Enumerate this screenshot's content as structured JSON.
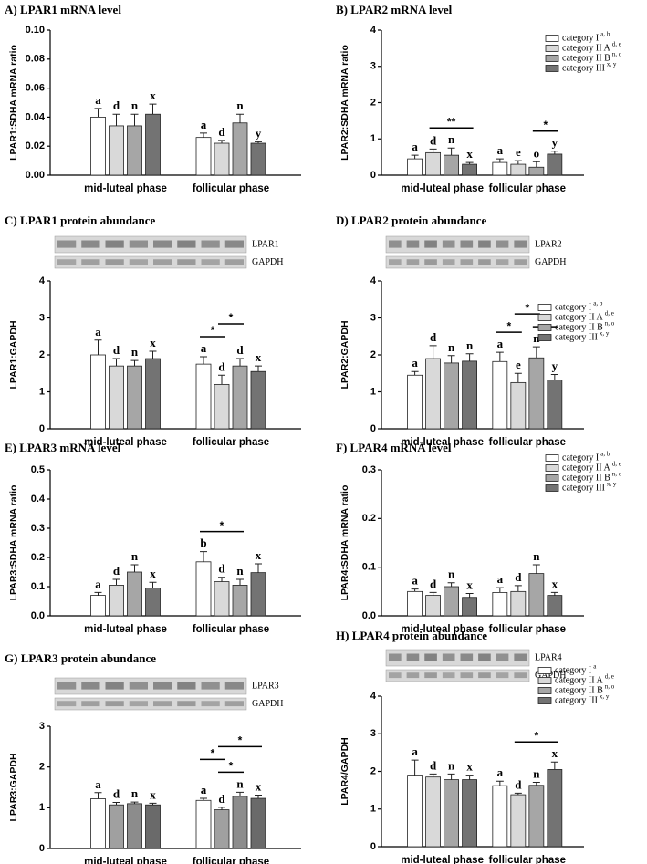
{
  "chart_data": [
    {
      "type": "bar",
      "title": "A) LPAR1 mRNA level",
      "y_label": "LPAR1:SDHA mRNA ratio",
      "categories": [
        "mid-luteal phase",
        "follicular phase"
      ],
      "ylim": [
        0,
        0.1
      ],
      "yticks": [
        {
          "value": 0,
          "label": "0.00"
        },
        {
          "value": 0.02,
          "label": "0.02"
        },
        {
          "value": 0.04,
          "label": "0.04"
        },
        {
          "value": 0.06,
          "label": "0.06"
        },
        {
          "value": 0.08,
          "label": "0.08"
        },
        {
          "value": 0.1,
          "label": "0.10"
        }
      ],
      "series": [
        {
          "name": "category I",
          "color": "#ffffff",
          "values": [
            0.04,
            0.026
          ],
          "errors": [
            0.006,
            0.003
          ],
          "letters": [
            "a",
            "a"
          ]
        },
        {
          "name": "category II A",
          "color": "#d9d9d9",
          "values": [
            0.034,
            0.022
          ],
          "errors": [
            0.008,
            0.002
          ],
          "letters": [
            "d",
            "d"
          ]
        },
        {
          "name": "category II B",
          "color": "#a6a6a6",
          "values": [
            0.034,
            0.036
          ],
          "errors": [
            0.008,
            0.006
          ],
          "letters": [
            "n",
            "n"
          ]
        },
        {
          "name": "category III",
          "color": "#737373",
          "values": [
            0.042,
            0.022
          ],
          "errors": [
            0.007,
            0.001
          ],
          "letters": [
            "x",
            "y"
          ]
        }
      ]
    },
    {
      "type": "bar",
      "title": "B) LPAR2 mRNA level",
      "y_label": "LPAR2:SDHA mRNA ratio",
      "categories": [
        "mid-luteal phase",
        "follicular phase"
      ],
      "ylim": [
        0,
        4
      ],
      "yticks": [
        0,
        1,
        2,
        3,
        4
      ],
      "legend": true,
      "series": [
        {
          "name": "category I",
          "sup": "a, b",
          "color": "#ffffff",
          "values": [
            0.45,
            0.35
          ],
          "errors": [
            0.1,
            0.1
          ],
          "letters": [
            "a",
            "a"
          ]
        },
        {
          "name": "category II A",
          "sup": "d, e",
          "color": "#d9d9d9",
          "values": [
            0.62,
            0.3
          ],
          "errors": [
            0.1,
            0.1
          ],
          "letters": [
            "d",
            "e"
          ]
        },
        {
          "name": "category II B",
          "sup": "n, o",
          "color": "#a6a6a6",
          "values": [
            0.55,
            0.22
          ],
          "errors": [
            0.2,
            0.15
          ],
          "letters": [
            "n",
            "o"
          ]
        },
        {
          "name": "category III",
          "sup": "x, y",
          "color": "#737373",
          "values": [
            0.3,
            0.58
          ],
          "errors": [
            0.05,
            0.08
          ],
          "letters": [
            "x",
            "y"
          ]
        }
      ],
      "brackets": [
        {
          "category": 0,
          "from": 1,
          "to": 3,
          "label": "**"
        },
        {
          "category": 1,
          "from": 2,
          "to": 3,
          "label": "*"
        }
      ]
    },
    {
      "type": "bar",
      "title": "C) LPAR1 protein abundance",
      "y_label": "LPAR1:GAPDH",
      "categories": [
        "mid-luteal phase",
        "follicular phase"
      ],
      "blots": [
        "LPAR1",
        "GAPDH"
      ],
      "ylim": [
        0,
        4
      ],
      "yticks": [
        0,
        1,
        2,
        3,
        4
      ],
      "series": [
        {
          "name": "category I",
          "color": "#ffffff",
          "values": [
            2.0,
            1.75
          ],
          "errors": [
            0.4,
            0.2
          ],
          "letters": [
            "a",
            "a"
          ]
        },
        {
          "name": "category II A",
          "color": "#d9d9d9",
          "values": [
            1.7,
            1.2
          ],
          "errors": [
            0.2,
            0.25
          ],
          "letters": [
            "d",
            "d"
          ]
        },
        {
          "name": "category II B",
          "color": "#a6a6a6",
          "values": [
            1.7,
            1.7
          ],
          "errors": [
            0.15,
            0.2
          ],
          "letters": [
            "n",
            "d"
          ]
        },
        {
          "name": "category III",
          "color": "#737373",
          "values": [
            1.9,
            1.55
          ],
          "errors": [
            0.2,
            0.15
          ],
          "letters": [
            "x",
            "x"
          ]
        }
      ],
      "brackets": [
        {
          "category": 1,
          "from": 0,
          "to": 1,
          "label": "*"
        },
        {
          "category": 1,
          "from": 1,
          "to": 2,
          "label": "*"
        }
      ]
    },
    {
      "type": "bar",
      "title": "D) LPAR2 protein abundance",
      "y_label": "LPAR2:GAPDH",
      "categories": [
        "mid-luteal phase",
        "follicular phase"
      ],
      "blots": [
        "LPAR2",
        "GAPDH"
      ],
      "ylim": [
        0,
        4
      ],
      "yticks": [
        0,
        1,
        2,
        3,
        4
      ],
      "legend": true,
      "series": [
        {
          "name": "category I",
          "sup": "a, b",
          "color": "#ffffff",
          "values": [
            1.45,
            1.82
          ],
          "errors": [
            0.1,
            0.25
          ],
          "letters": [
            "a",
            "a"
          ]
        },
        {
          "name": "category II A",
          "sup": "d, e",
          "color": "#d9d9d9",
          "values": [
            1.9,
            1.25
          ],
          "errors": [
            0.35,
            0.25
          ],
          "letters": [
            "d",
            "e"
          ]
        },
        {
          "name": "category II B",
          "sup": "n, o",
          "color": "#a6a6a6",
          "values": [
            1.78,
            1.92
          ],
          "errors": [
            0.2,
            0.3
          ],
          "letters": [
            "n",
            "n"
          ]
        },
        {
          "name": "category III",
          "sup": "x, y",
          "color": "#737373",
          "values": [
            1.83,
            1.32
          ],
          "errors": [
            0.2,
            0.15
          ],
          "letters": [
            "n",
            "y"
          ]
        }
      ],
      "brackets": [
        {
          "category": 1,
          "from": 0,
          "to": 1,
          "label": "*"
        },
        {
          "category": 1,
          "from": 2,
          "to": 3,
          "label": "*"
        },
        {
          "category": 1,
          "from": 1,
          "to": 2,
          "label": "*"
        }
      ]
    },
    {
      "type": "bar",
      "title": "E) LPAR3 mRNA level",
      "y_label": "LPAR3:SDHA mRNA ratio",
      "categories": [
        "mid-luteal phase",
        "follicular phase"
      ],
      "ylim": [
        0,
        0.5
      ],
      "yticks": [
        {
          "value": 0,
          "label": "0.0"
        },
        0.1,
        0.2,
        0.3,
        0.4,
        0.5
      ],
      "series": [
        {
          "name": "category I",
          "color": "#ffffff",
          "values": [
            0.07,
            0.185
          ],
          "errors": [
            0.01,
            0.035
          ],
          "letters": [
            "a",
            "b"
          ]
        },
        {
          "name": "category II A",
          "color": "#d9d9d9",
          "values": [
            0.105,
            0.117
          ],
          "errors": [
            0.02,
            0.015
          ],
          "letters": [
            "d",
            "d"
          ]
        },
        {
          "name": "category II B",
          "color": "#a6a6a6",
          "values": [
            0.15,
            0.105
          ],
          "errors": [
            0.025,
            0.02
          ],
          "letters": [
            "n",
            "n"
          ]
        },
        {
          "name": "category III",
          "color": "#737373",
          "values": [
            0.095,
            0.148
          ],
          "errors": [
            0.02,
            0.03
          ],
          "letters": [
            "x",
            "x"
          ]
        }
      ],
      "brackets": [
        {
          "category": 1,
          "from": 0,
          "to": 2,
          "label": "*"
        }
      ]
    },
    {
      "type": "bar",
      "title": "F) LPAR4 mRNA level",
      "y_label": "LPAR4:SDHA mRNA ratio",
      "categories": [
        "mid-luteal phase",
        "follicular phase"
      ],
      "ylim": [
        0,
        0.3
      ],
      "yticks": [
        {
          "value": 0,
          "label": "0.0"
        },
        0.1,
        0.2,
        0.3
      ],
      "legend": true,
      "series": [
        {
          "name": "category I",
          "sup": "a, b",
          "color": "#ffffff",
          "values": [
            0.05,
            0.048
          ],
          "errors": [
            0.005,
            0.01
          ],
          "letters": [
            "a",
            "a"
          ]
        },
        {
          "name": "category II A",
          "sup": "d, e",
          "color": "#d9d9d9",
          "values": [
            0.042,
            0.05
          ],
          "errors": [
            0.006,
            0.012
          ],
          "letters": [
            "d",
            "d"
          ]
        },
        {
          "name": "category II B",
          "sup": "n, o",
          "color": "#a6a6a6",
          "values": [
            0.06,
            0.087
          ],
          "errors": [
            0.008,
            0.018
          ],
          "letters": [
            "n",
            "n"
          ]
        },
        {
          "name": "category III",
          "sup": "x, y",
          "color": "#737373",
          "values": [
            0.038,
            0.042
          ],
          "errors": [
            0.008,
            0.006
          ],
          "letters": [
            "x",
            "x"
          ]
        }
      ]
    },
    {
      "type": "bar",
      "title": "G) LPAR3 protein abundance",
      "y_label": "LPAR3:GAPDH",
      "categories": [
        "mid-luteal phase",
        "follicular phase"
      ],
      "blots": [
        "LPAR3",
        "GAPDH"
      ],
      "ylim": [
        0,
        3
      ],
      "yticks": [
        0,
        1,
        2,
        3
      ],
      "series": [
        {
          "name": "category I",
          "color": "#ffffff",
          "values": [
            1.22,
            1.18
          ],
          "errors": [
            0.15,
            0.05
          ],
          "letters": [
            "a",
            "a"
          ]
        },
        {
          "name": "category II A",
          "color": "#a0a0a0",
          "values": [
            1.07,
            0.95
          ],
          "errors": [
            0.06,
            0.06
          ],
          "letters": [
            "d",
            "d"
          ]
        },
        {
          "name": "category II B",
          "color": "#8c8c8c",
          "values": [
            1.1,
            1.28
          ],
          "errors": [
            0.04,
            0.1
          ],
          "letters": [
            "n",
            "n"
          ]
        },
        {
          "name": "category III",
          "color": "#6a6a6a",
          "values": [
            1.07,
            1.23
          ],
          "errors": [
            0.04,
            0.08
          ],
          "letters": [
            "x",
            "x"
          ]
        }
      ],
      "brackets": [
        {
          "category": 1,
          "from": 1,
          "to": 2,
          "label": "*"
        },
        {
          "category": 1,
          "from": 0,
          "to": 1,
          "label": "*"
        },
        {
          "category": 1,
          "from": 1,
          "to": 3,
          "label": "*"
        }
      ]
    },
    {
      "type": "bar",
      "title": "H) LPAR4 protein abundance",
      "y_label": "LPAR4/GAPDH",
      "categories": [
        "mid-luteal phase",
        "follicular phase"
      ],
      "blots": [
        "LPAR4",
        "GAPDH"
      ],
      "ylim": [
        0,
        4
      ],
      "yticks": [
        0,
        1,
        2,
        3,
        4
      ],
      "legend": true,
      "series": [
        {
          "name": "category I",
          "sup": "a",
          "color": "#ffffff",
          "values": [
            1.9,
            1.62
          ],
          "errors": [
            0.4,
            0.12
          ],
          "letters": [
            "a",
            "a"
          ]
        },
        {
          "name": "category II A",
          "sup": "d, e",
          "color": "#d9d9d9",
          "values": [
            1.85,
            1.38
          ],
          "errors": [
            0.08,
            0.04
          ],
          "letters": [
            "d",
            "d"
          ]
        },
        {
          "name": "category II B",
          "sup": "n, o",
          "color": "#a6a6a6",
          "values": [
            1.78,
            1.63
          ],
          "errors": [
            0.15,
            0.08
          ],
          "letters": [
            "n",
            "n"
          ]
        },
        {
          "name": "category III",
          "sup": "x, y",
          "color": "#737373",
          "values": [
            1.78,
            2.05
          ],
          "errors": [
            0.12,
            0.2
          ],
          "letters": [
            "x",
            "x"
          ]
        }
      ],
      "brackets": [
        {
          "category": 1,
          "from": 1,
          "to": 3,
          "label": "*"
        }
      ]
    }
  ]
}
